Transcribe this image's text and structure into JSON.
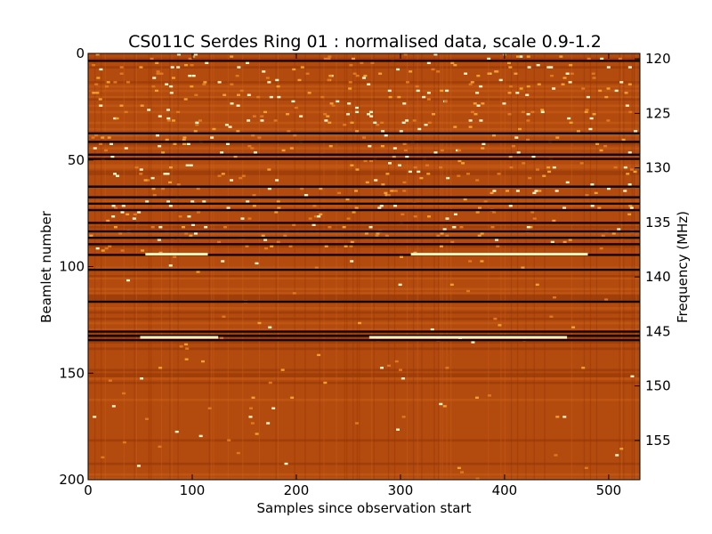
{
  "chart_data": {
    "type": "heatmap",
    "title": "CS011C Serdes Ring 01 : normalised data, scale 0.9-1.2",
    "xlabel": "Samples since observation start",
    "ylabel": "Beamlet number",
    "ylabel_right": "Frequency (MHz)",
    "xlim": [
      0,
      530
    ],
    "ylim": [
      200,
      0
    ],
    "ylim_right": [
      119.5,
      158.6
    ],
    "x_ticks": [
      "0",
      "100",
      "200",
      "300",
      "400",
      "500"
    ],
    "y_ticks": [
      "0",
      "50",
      "100",
      "150",
      "200"
    ],
    "y_right_ticks": [
      "120",
      "125",
      "130",
      "135",
      "140",
      "145",
      "150",
      "155"
    ],
    "color_scale": [
      0.9,
      1.2
    ],
    "colormap": "gist_heat",
    "dark_beamlets": [
      3,
      37,
      41,
      47,
      49,
      62,
      67,
      70,
      73,
      79,
      83,
      86,
      89,
      94,
      101,
      116,
      130,
      132,
      134
    ],
    "bright_segments": [
      {
        "beamlet": 94,
        "x_start": 310,
        "x_end": 480
      },
      {
        "beamlet": 94,
        "x_start": 55,
        "x_end": 115
      },
      {
        "beamlet": 133,
        "x_start": 50,
        "x_end": 125
      },
      {
        "beamlet": 133,
        "x_start": 270,
        "x_end": 460
      }
    ]
  }
}
